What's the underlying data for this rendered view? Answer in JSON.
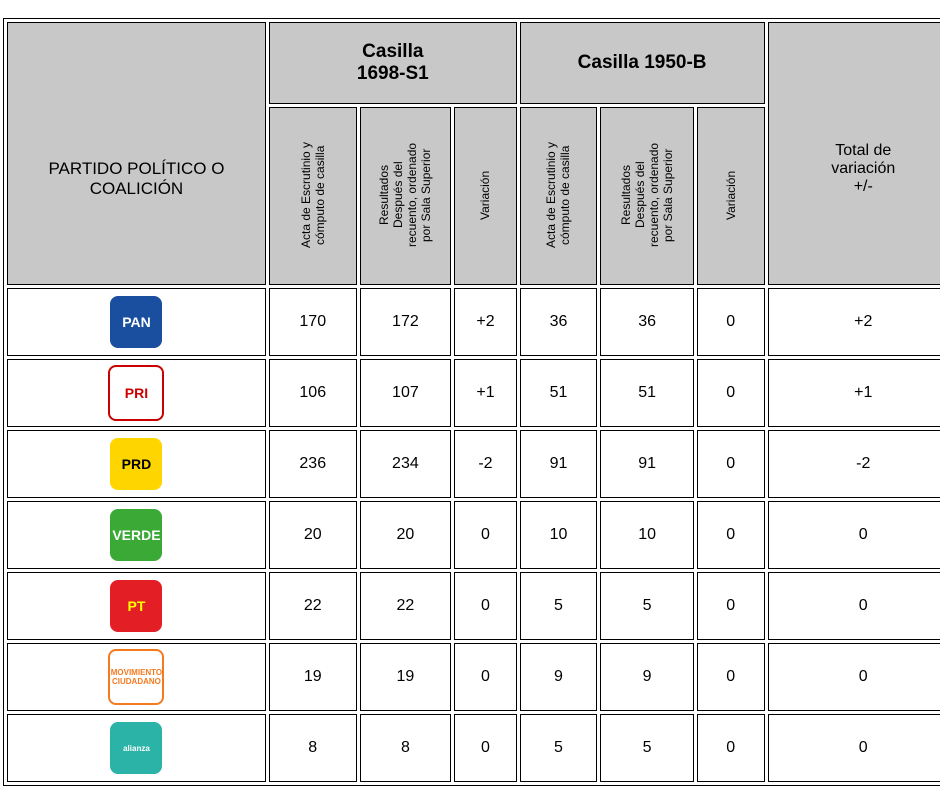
{
  "header": {
    "party_column": "PARTIDO POLÍTICO O COALICIÓN",
    "groups": [
      "Casilla 1698-S1",
      "Casilla 1950-B"
    ],
    "subcolumns": [
      "Acta de Escrutinio y cómputo de casilla",
      "Resultados Después del recuento, ordenado por Sala Superior",
      "Variación",
      "Acta de Escrutinio y cómputo de casilla",
      "Resultados Después del recuento, ordenado por Sala Superior",
      "Variación"
    ],
    "total": "Total de variación +/-"
  },
  "rows": [
    {
      "party": "PAN",
      "cells": [
        "170",
        "172",
        "+2",
        "36",
        "36",
        "0",
        "+2"
      ]
    },
    {
      "party": "PRI",
      "cells": [
        "106",
        "107",
        "+1",
        "51",
        "51",
        "0",
        "+1"
      ]
    },
    {
      "party": "PRD",
      "cells": [
        "236",
        "234",
        "-2",
        "91",
        "91",
        "0",
        "-2"
      ]
    },
    {
      "party": "VERDE",
      "cells": [
        "20",
        "20",
        "0",
        "10",
        "10",
        "0",
        "0"
      ]
    },
    {
      "party": "PT",
      "cells": [
        "22",
        "22",
        "0",
        "5",
        "5",
        "0",
        "0"
      ]
    },
    {
      "party": "MOVIMIENTO CIUDADANO",
      "cells": [
        "19",
        "19",
        "0",
        "9",
        "9",
        "0",
        "0"
      ]
    },
    {
      "party": "alianza",
      "cells": [
        "8",
        "8",
        "0",
        "5",
        "5",
        "0",
        "0"
      ]
    }
  ]
}
